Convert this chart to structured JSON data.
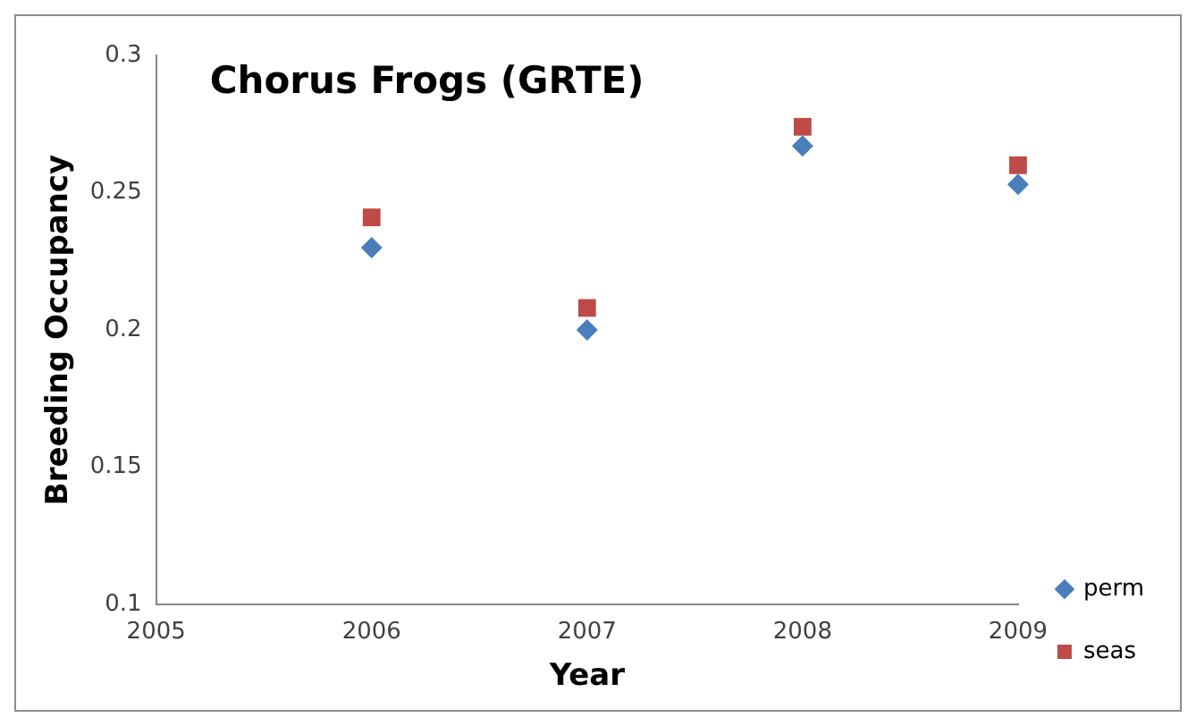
{
  "chart_data": {
    "type": "scatter",
    "title": "Chorus Frogs (GRTE)",
    "xlabel": "Year",
    "ylabel": "Breeding Occupancy",
    "x": [
      2006,
      2007,
      2008,
      2009
    ],
    "series": [
      {
        "name": "perm",
        "color": "#4a7ebb",
        "marker": "diamond",
        "values": [
          0.23,
          0.2,
          0.267,
          0.253
        ]
      },
      {
        "name": "seas",
        "color": "#be4b48",
        "marker": "square",
        "values": [
          0.241,
          0.208,
          0.274,
          0.26
        ]
      }
    ],
    "xlim": [
      2005,
      2009
    ],
    "xticks": [
      2005,
      2006,
      2007,
      2008,
      2009
    ],
    "ylim": [
      0.1,
      0.3
    ],
    "yticks": [
      0.1,
      0.15,
      0.2,
      0.25,
      0.3
    ],
    "grid": false,
    "legend": "right"
  }
}
